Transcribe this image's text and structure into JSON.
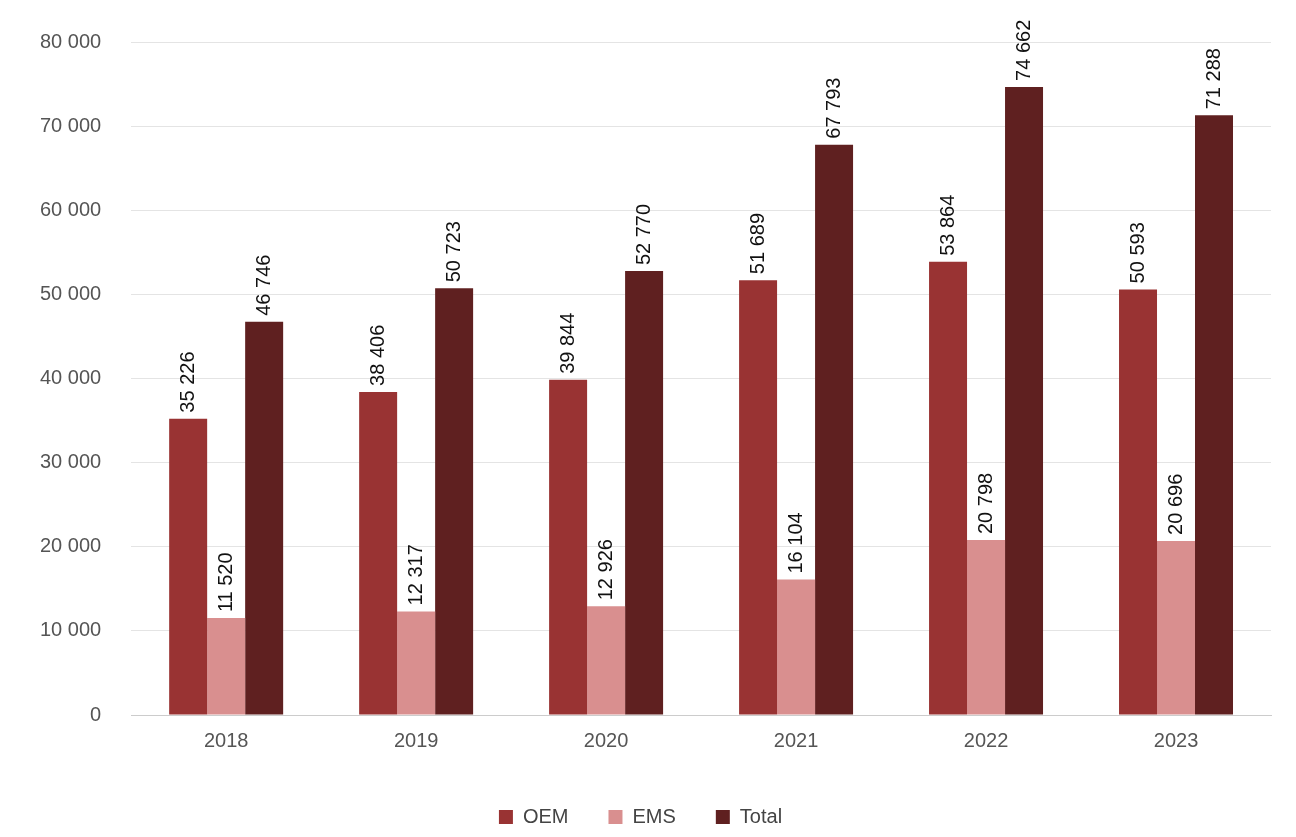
{
  "chart_data": {
    "type": "bar",
    "categories": [
      "2018",
      "2019",
      "2020",
      "2021",
      "2022",
      "2023"
    ],
    "series": [
      {
        "name": "OEM",
        "color": "#993333",
        "values": [
          35226,
          38406,
          39844,
          51689,
          53864,
          50593
        ],
        "value_labels": [
          "35 226",
          "38 406",
          "39 844",
          "51 689",
          "53 864",
          "50 593"
        ]
      },
      {
        "name": "EMS",
        "color": "#d98f8f",
        "values": [
          11520,
          12317,
          12926,
          16104,
          20798,
          20696
        ],
        "value_labels": [
          "11 520",
          "12 317",
          "12 926",
          "16 104",
          "20 798",
          "20 696"
        ]
      },
      {
        "name": "Total",
        "color": "#5f2020",
        "values": [
          46746,
          50723,
          52770,
          67793,
          74662,
          71288
        ],
        "value_labels": [
          "46 746",
          "50 723",
          "52 770",
          "67 793",
          "74 662",
          "71 288"
        ]
      }
    ],
    "ylim": [
      0,
      80000
    ],
    "yticks": [
      {
        "value": 0,
        "label": "0"
      },
      {
        "value": 10000,
        "label": "10 000"
      },
      {
        "value": 20000,
        "label": "20 000"
      },
      {
        "value": 30000,
        "label": "30 000"
      },
      {
        "value": 40000,
        "label": "40 000"
      },
      {
        "value": 50000,
        "label": "50 000"
      },
      {
        "value": 60000,
        "label": "60 000"
      },
      {
        "value": 70000,
        "label": "70 000"
      },
      {
        "value": 80000,
        "label": "80 000"
      }
    ],
    "grid": "y",
    "legend": "bottom"
  }
}
